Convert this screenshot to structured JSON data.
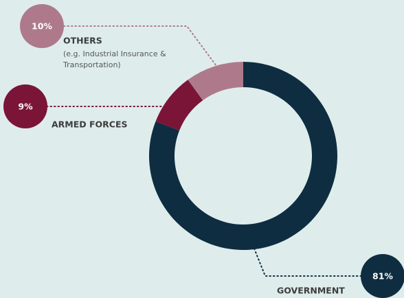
{
  "chart_data": {
    "type": "donut",
    "categories": [
      "GOVERNMENT",
      "ARMED FORCES",
      "OTHERS"
    ],
    "values": [
      81,
      9,
      10
    ],
    "value_labels": [
      "81%",
      "9%",
      "10%"
    ],
    "colors": [
      "#0f2d40",
      "#7a1538",
      "#ae7a8b"
    ],
    "annotation": "(e.g. Industrial Insurance & Transportation)"
  }
}
